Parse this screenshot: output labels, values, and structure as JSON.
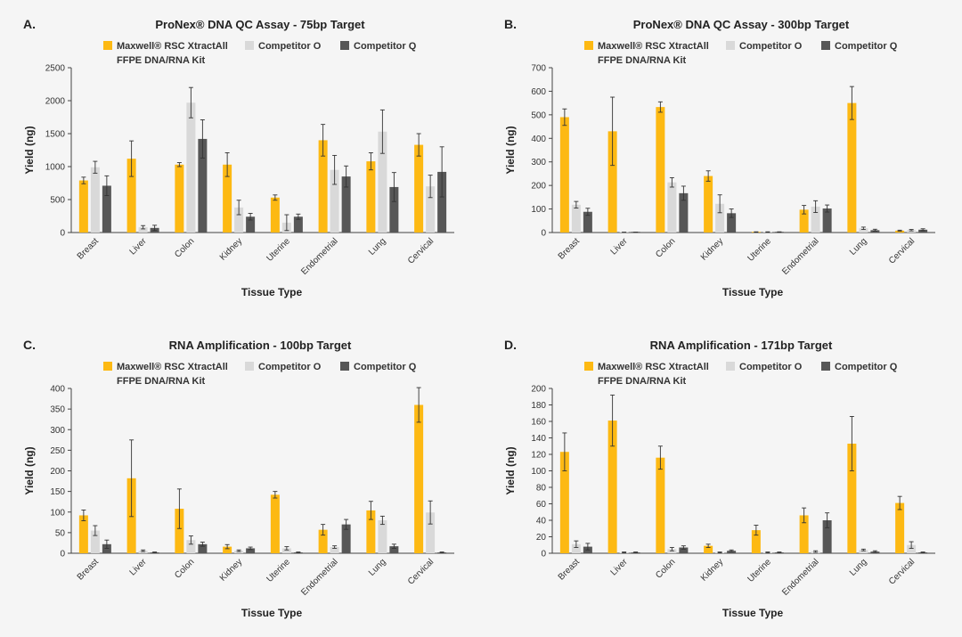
{
  "colors": {
    "maxwell": "#FDB913",
    "competitor_o": "#D9D9D9",
    "competitor_q": "#575757",
    "error_bar": "#333333",
    "axis": "#444444"
  },
  "legend": {
    "maxwell_line1": "Maxwell® RSC XtractAll",
    "maxwell_line2": "FFPE DNA/RNA Kit",
    "competitor_o": "Competitor O",
    "competitor_q": "Competitor Q"
  },
  "chart_data": [
    {
      "id": "A",
      "letter": "A.",
      "type": "bar",
      "title": "ProNex® DNA QC Assay - 75bp Target",
      "xlabel": "Tissue Type",
      "ylabel": "Yield (ng)",
      "ylim": [
        0,
        2500
      ],
      "yticks": [
        0,
        500,
        1000,
        1500,
        2000,
        2500
      ],
      "categories": [
        "Breast",
        "Liver",
        "Colon",
        "Kidney",
        "Uterine",
        "Endometrial",
        "Lung",
        "Cervical"
      ],
      "series": [
        {
          "name": "Maxwell® RSC XtractAll FFPE DNA/RNA Kit",
          "key": "maxwell",
          "values": [
            790,
            1120,
            1030,
            1030,
            530,
            1400,
            1080,
            1330
          ],
          "errors": [
            50,
            270,
            30,
            180,
            40,
            240,
            130,
            170
          ]
        },
        {
          "name": "Competitor O",
          "key": "competitor_o",
          "values": [
            990,
            80,
            1970,
            380,
            150,
            950,
            1530,
            700
          ],
          "errors": [
            90,
            25,
            230,
            110,
            120,
            220,
            330,
            170
          ]
        },
        {
          "name": "Competitor Q",
          "key": "competitor_q",
          "values": [
            710,
            70,
            1420,
            240,
            240,
            850,
            690,
            920
          ],
          "errors": [
            150,
            40,
            290,
            50,
            40,
            160,
            220,
            380
          ]
        }
      ]
    },
    {
      "id": "B",
      "letter": "B.",
      "type": "bar",
      "title": "ProNex® DNA QC Assay - 300bp Target",
      "xlabel": "Tissue Type",
      "ylabel": "Yield (ng)",
      "ylim": [
        0,
        700
      ],
      "yticks": [
        0,
        100,
        200,
        300,
        400,
        500,
        600,
        700
      ],
      "categories": [
        "Breast",
        "Liver",
        "Colon",
        "Kidney",
        "Uterine",
        "Endometrial",
        "Lung",
        "Cervical"
      ],
      "series": [
        {
          "name": "Maxwell® RSC XtractAll FFPE DNA/RNA Kit",
          "key": "maxwell",
          "values": [
            490,
            430,
            533,
            240,
            2,
            97,
            550,
            8
          ],
          "errors": [
            35,
            145,
            22,
            22,
            1,
            18,
            70,
            2
          ]
        },
        {
          "name": "Competitor O",
          "key": "competitor_o",
          "values": [
            118,
            1,
            213,
            122,
            2,
            110,
            18,
            10
          ],
          "errors": [
            14,
            0.5,
            20,
            38,
            1,
            25,
            5,
            3
          ]
        },
        {
          "name": "Competitor Q",
          "key": "competitor_q",
          "values": [
            88,
            1,
            167,
            82,
            2,
            102,
            10,
            12
          ],
          "errors": [
            15,
            0.5,
            30,
            18,
            1,
            15,
            4,
            4
          ]
        }
      ]
    },
    {
      "id": "C",
      "letter": "C.",
      "type": "bar",
      "title": "RNA Amplification - 100bp Target",
      "xlabel": "Tissue Type",
      "ylabel": "Yield (ng)",
      "ylim": [
        0,
        400
      ],
      "yticks": [
        0,
        50,
        100,
        150,
        200,
        250,
        300,
        350,
        400
      ],
      "categories": [
        "Breast",
        "Liver",
        "Colon",
        "Kidney",
        "Uterine",
        "Endometrial",
        "Lung",
        "Cervical"
      ],
      "series": [
        {
          "name": "Maxwell® RSC XtractAll FFPE DNA/RNA Kit",
          "key": "maxwell",
          "values": [
            92,
            182,
            108,
            16,
            142,
            57,
            104,
            360
          ],
          "errors": [
            13,
            93,
            48,
            5,
            8,
            13,
            22,
            42
          ]
        },
        {
          "name": "Competitor O",
          "key": "competitor_o",
          "values": [
            55,
            6,
            32,
            6,
            12,
            15,
            80,
            99
          ],
          "errors": [
            12,
            2,
            10,
            2,
            4,
            3,
            10,
            28
          ]
        },
        {
          "name": "Competitor Q",
          "key": "competitor_q",
          "values": [
            22,
            2,
            22,
            12,
            2,
            70,
            17,
            2
          ],
          "errors": [
            10,
            1,
            5,
            3,
            1,
            12,
            5,
            1
          ]
        }
      ]
    },
    {
      "id": "D",
      "letter": "D.",
      "type": "bar",
      "title": "RNA Amplification - 171bp Target",
      "xlabel": "Tissue Type",
      "ylabel": "Yield (ng)",
      "ylim": [
        0,
        200
      ],
      "yticks": [
        0,
        20,
        40,
        60,
        80,
        100,
        120,
        140,
        160,
        180,
        200
      ],
      "categories": [
        "Breast",
        "Liver",
        "Colon",
        "Kidney",
        "Uterine",
        "Endometrial",
        "Lung",
        "Cervical"
      ],
      "series": [
        {
          "name": "Maxwell® RSC XtractAll FFPE DNA/RNA Kit",
          "key": "maxwell",
          "values": [
            123,
            161,
            116,
            9,
            28,
            46,
            133,
            61
          ],
          "errors": [
            23,
            31,
            14,
            2,
            6,
            9,
            33,
            8
          ]
        },
        {
          "name": "Competitor O",
          "key": "competitor_o",
          "values": [
            11,
            1,
            5,
            1,
            1,
            2,
            4,
            10
          ],
          "errors": [
            4,
            0.5,
            2,
            0.5,
            0.5,
            1,
            1,
            4
          ]
        },
        {
          "name": "Competitor Q",
          "key": "competitor_q",
          "values": [
            8,
            1,
            7,
            3,
            1,
            40,
            2,
            1
          ],
          "errors": [
            4,
            0.5,
            2,
            1,
            0.5,
            9,
            1,
            0.5
          ]
        }
      ]
    }
  ]
}
